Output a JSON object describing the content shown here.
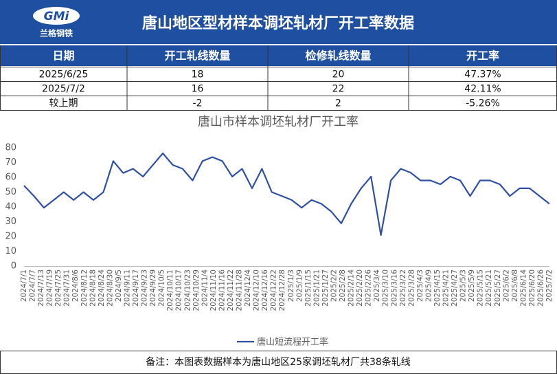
{
  "header": {
    "logo": "GMi",
    "logo_caption": "兰格钢铁",
    "title": "唐山地区型材样本调坯轧材厂开工率数据"
  },
  "table": {
    "columns": [
      "日期",
      "开工轧线数量",
      "检修轧线数量",
      "开工率"
    ],
    "rows": [
      [
        "2025/6/25",
        "18",
        "20",
        "47.37%"
      ],
      [
        "2025/7/2",
        "16",
        "22",
        "42.11%"
      ],
      [
        "较上期",
        "-2",
        "2",
        "-5.26%"
      ]
    ]
  },
  "chart_data": {
    "type": "line",
    "title": "唐山市样本调坯轧材厂开工率",
    "series": [
      {
        "name": "唐山短流程开工率",
        "color": "#2e4fa3",
        "values": [
          54.4,
          47.4,
          39.5,
          44.7,
          50,
          44.7,
          50,
          44.7,
          50,
          71,
          63,
          65.8,
          60.5,
          68.4,
          76.3,
          68.4,
          65.8,
          57.9,
          71,
          73.7,
          71,
          60.5,
          65.8,
          52.6,
          65.8,
          50,
          47.4,
          44.7,
          39.5,
          44.7,
          42.1,
          36.8,
          28.9,
          42.1,
          52.6,
          60.5,
          21,
          57.9,
          65.8,
          63.2,
          57.9,
          57.9,
          55.3,
          60.5,
          57.9,
          47.4,
          57.9,
          57.9,
          55.3,
          47.4,
          52.6,
          52.6,
          47.37,
          42.11
        ]
      }
    ],
    "ylim": [
      0,
      80
    ],
    "yticks": [
      0,
      10,
      20,
      30,
      40,
      50,
      60,
      70,
      80
    ],
    "xticks": [
      "2024/7/1",
      "2024/7/7",
      "2024/7/13",
      "2024/7/19",
      "2024/7/25",
      "2024/7/31",
      "2024/8/6",
      "2024/8/12",
      "2024/8/18",
      "2024/8/24",
      "2024/8/30",
      "2024/9/5",
      "2024/9/11",
      "2024/9/17",
      "2024/9/23",
      "2024/9/29",
      "2024/10/5",
      "2024/10/11",
      "2024/10/17",
      "2024/10/23",
      "2024/10/29",
      "2024/11/4",
      "2024/11/10",
      "2024/11/16",
      "2024/11/22",
      "2024/11/28",
      "2024/12/4",
      "2024/12/10",
      "2024/12/16",
      "2024/12/22",
      "2024/12/28",
      "2025/1/3",
      "2025/1/9",
      "2025/1/15",
      "2025/1/21",
      "2025/1/27",
      "2025/2/2",
      "2025/2/8",
      "2025/2/14",
      "2025/2/20",
      "2025/2/26",
      "2025/3/4",
      "2025/3/10",
      "2025/3/16",
      "2025/3/22",
      "2025/3/28",
      "2025/4/3",
      "2025/4/9",
      "2025/4/15",
      "2025/4/21",
      "2025/4/27",
      "2025/5/3",
      "2025/5/9",
      "2025/5/15",
      "2025/5/21",
      "2025/5/27",
      "2025/6/2",
      "2025/6/8",
      "2025/6/14",
      "2025/6/20",
      "2025/6/26",
      "2025/7/2"
    ],
    "legend": "bottom",
    "grid": false
  },
  "footer": "备注：本图表数据样本为唐山地区25家调坯轧材厂共38条轧线"
}
